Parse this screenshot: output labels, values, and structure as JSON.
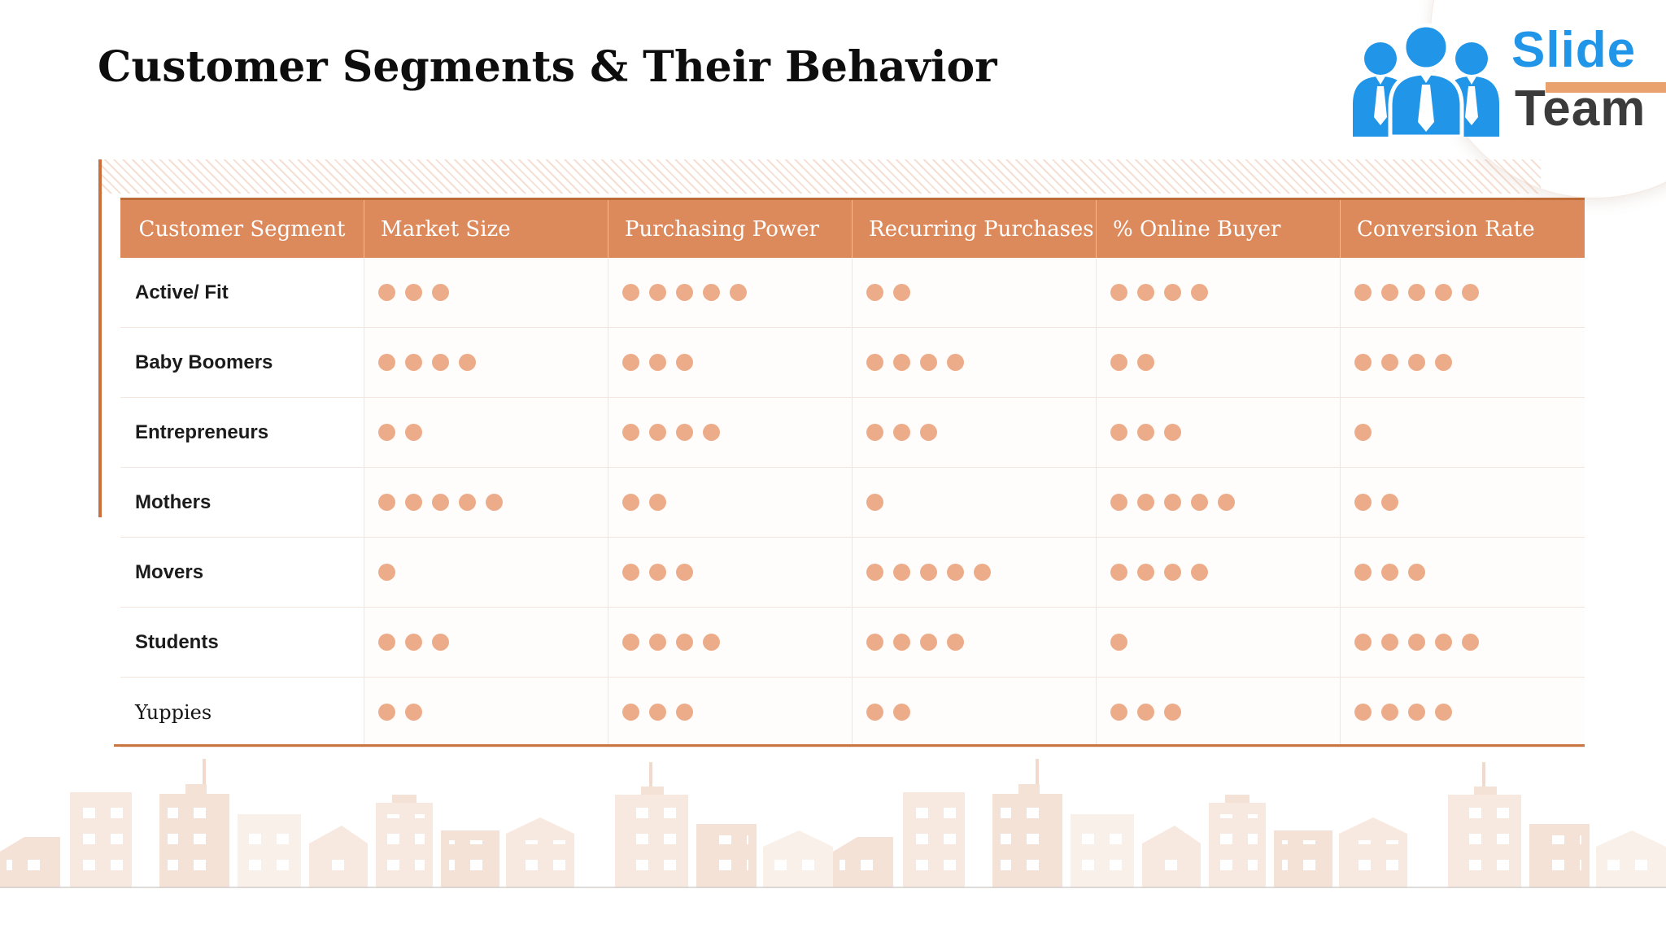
{
  "title": "Customer Segments & Their Behavior",
  "logo": {
    "slide": "Slide",
    "team": "Team",
    "icon": "team-people-icon"
  },
  "colors": {
    "header_bg": "#DC8A5C",
    "header_top_border": "#BD6C37",
    "header_text": "#FFFFFF",
    "rating_dot": "#ECAC89",
    "accent_line": "#CC6F3D",
    "table_bottom_line": "#C97641",
    "row_separator": "#F1E5DE",
    "logo_blue": "#2196E8",
    "logo_dark": "#3B3B3B",
    "logo_bar": "#E9A26E",
    "skyline_fill": "#F8E9E0"
  },
  "table": {
    "columns": [
      "Customer Segment",
      "Market Size",
      "Purchasing Power",
      "Recurring Purchases",
      "% Online Buyer",
      "Conversion Rate"
    ],
    "rating_max": 5,
    "rows": [
      {
        "label": "Active/ Fit",
        "label_style": "sans",
        "values": [
          3,
          5,
          2,
          4,
          5
        ]
      },
      {
        "label": "Baby Boomers",
        "label_style": "sans",
        "values": [
          4,
          3,
          4,
          2,
          4
        ]
      },
      {
        "label": "Entrepreneurs",
        "label_style": "sans",
        "values": [
          2,
          4,
          3,
          3,
          1
        ]
      },
      {
        "label": "Mothers",
        "label_style": "sans",
        "values": [
          5,
          2,
          1,
          5,
          2
        ]
      },
      {
        "label": "Movers",
        "label_style": "sans",
        "values": [
          1,
          3,
          5,
          4,
          3
        ]
      },
      {
        "label": "Students",
        "label_style": "sans",
        "values": [
          3,
          4,
          4,
          1,
          5
        ]
      },
      {
        "label": "Yuppies",
        "label_style": "serif",
        "values": [
          2,
          3,
          2,
          3,
          4
        ]
      }
    ]
  }
}
